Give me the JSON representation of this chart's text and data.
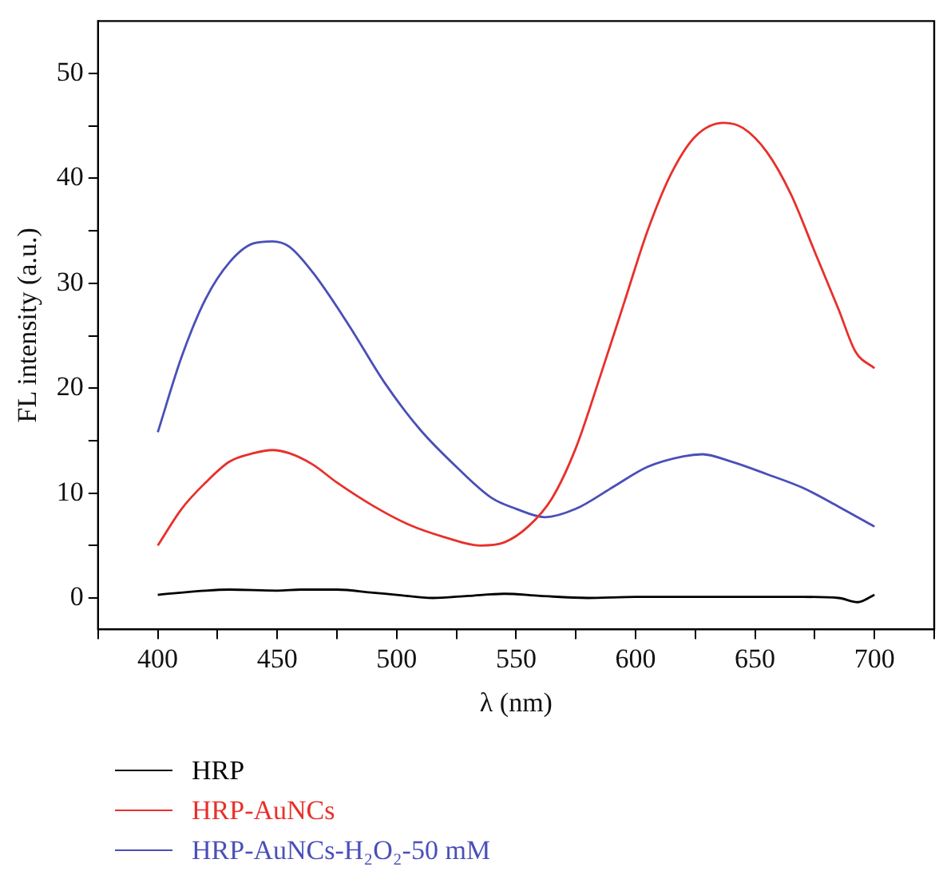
{
  "chart_data": {
    "type": "line",
    "xlabel": "λ (nm)",
    "ylabel": "FL intensity (a.u.)",
    "xlim": [
      375,
      725
    ],
    "xticks": [
      {
        "value": 375,
        "label": null
      },
      400,
      {
        "value": 425,
        "label": null
      },
      450,
      {
        "value": 475,
        "label": null
      },
      500,
      {
        "value": 525,
        "label": null
      },
      550,
      {
        "value": 575,
        "label": null
      },
      600,
      {
        "value": 625,
        "label": null
      },
      650,
      {
        "value": 675,
        "label": null
      },
      700,
      {
        "value": 725,
        "label": null
      }
    ],
    "ylim": [
      -3,
      55
    ],
    "yticks": [
      0,
      {
        "value": 5,
        "label": null
      },
      10,
      {
        "value": 15,
        "label": null
      },
      20,
      {
        "value": 25,
        "label": null
      },
      30,
      {
        "value": 35,
        "label": null
      },
      40,
      {
        "value": 45,
        "label": null
      },
      50
    ],
    "grid": false,
    "legend": "bottom",
    "marker": "none",
    "line_style": "solid",
    "series": [
      {
        "name": "HRP",
        "color": "#000000",
        "x": [
          400,
          420,
          430,
          450,
          460,
          475,
          490,
          500,
          515,
          530,
          545,
          560,
          580,
          600,
          625,
          650,
          670,
          685,
          693,
          700
        ],
        "values": [
          0.3,
          0.7,
          0.8,
          0.7,
          0.8,
          0.8,
          0.5,
          0.3,
          0,
          0.2,
          0.4,
          0.2,
          0,
          0.1,
          0.1,
          0.1,
          0.1,
          0,
          -0.4,
          0.3
        ]
      },
      {
        "name": "HRP-AuNCs",
        "color": "#e8302a",
        "x": [
          400,
          410,
          420,
          430,
          440,
          448,
          455,
          465,
          475,
          490,
          505,
          520,
          535,
          545,
          555,
          565,
          575,
          585,
          595,
          605,
          615,
          625,
          637,
          645,
          655,
          665,
          675,
          685,
          692,
          700
        ],
        "values": [
          5,
          8.5,
          11,
          13,
          13.8,
          14.1,
          13.8,
          12.7,
          11,
          8.8,
          7,
          5.8,
          5,
          5.3,
          6.8,
          9.5,
          14.3,
          21,
          28,
          35,
          40.5,
          44,
          45.3,
          44.8,
          42.5,
          38.5,
          33,
          27.5,
          23.5,
          21.9
        ]
      },
      {
        "name": "HRP-AuNCs-H₂O₂-50 mM",
        "color": "#4a4fb8",
        "x": [
          400,
          410,
          420,
          430,
          440,
          448,
          455,
          465,
          480,
          495,
          510,
          525,
          540,
          550,
          562,
          575,
          590,
          605,
          620,
          628,
          640,
          655,
          670,
          685,
          700
        ],
        "values": [
          15.8,
          23,
          28.5,
          32,
          33.8,
          34,
          33.5,
          31,
          26,
          20.5,
          16,
          12.5,
          9.5,
          8.5,
          7.7,
          8.5,
          10.5,
          12.5,
          13.5,
          13.7,
          13,
          11.8,
          10.5,
          8.7,
          6.8
        ]
      }
    ]
  }
}
